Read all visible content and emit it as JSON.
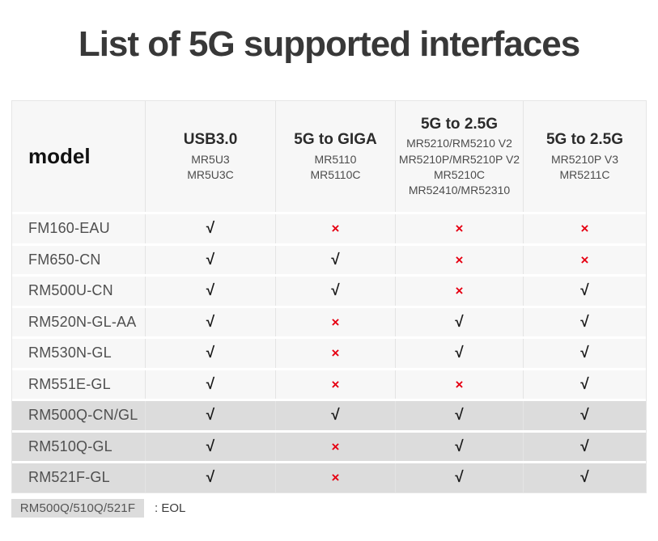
{
  "title": "List of 5G supported interfaces",
  "table": {
    "model_header": "model",
    "columns": [
      {
        "title": "USB3.0",
        "models": [
          "MR5U3",
          "MR5U3C"
        ]
      },
      {
        "title": "5G to GIGA",
        "models": [
          "MR5110",
          "MR5110C"
        ]
      },
      {
        "title": "5G to 2.5G",
        "models": [
          "MR5210/RM5210 V2",
          "MR5210P/MR5210P V2",
          "MR5210C",
          "MR52410/MR52310"
        ]
      },
      {
        "title": "5G to 2.5G",
        "models": [
          "MR5210P V3",
          "MR5211C"
        ]
      }
    ],
    "symbols": {
      "check": "√",
      "cross": "×"
    },
    "rows": [
      {
        "model": "FM160-EAU",
        "values": [
          "check",
          "cross",
          "cross",
          "cross"
        ],
        "eol": false
      },
      {
        "model": "FM650-CN",
        "values": [
          "check",
          "check",
          "cross",
          "cross"
        ],
        "eol": false
      },
      {
        "model": "RM500U-CN",
        "values": [
          "check",
          "check",
          "cross",
          "check"
        ],
        "eol": false
      },
      {
        "model": "RM520N-GL-AA",
        "values": [
          "check",
          "cross",
          "check",
          "check"
        ],
        "eol": false
      },
      {
        "model": "RM530N-GL",
        "values": [
          "check",
          "cross",
          "check",
          "check"
        ],
        "eol": false
      },
      {
        "model": "RM551E-GL",
        "values": [
          "check",
          "cross",
          "cross",
          "check"
        ],
        "eol": false
      },
      {
        "model": "RM500Q-CN/GL",
        "values": [
          "check",
          "check",
          "check",
          "check"
        ],
        "eol": true
      },
      {
        "model": "RM510Q-GL",
        "values": [
          "check",
          "cross",
          "check",
          "check"
        ],
        "eol": true
      },
      {
        "model": "RM521F-GL",
        "values": [
          "check",
          "cross",
          "check",
          "check"
        ],
        "eol": true
      }
    ]
  },
  "legend": {
    "swatch_label": "RM500Q/510Q/521F",
    "description": ": EOL"
  },
  "colors": {
    "check": "#1a1a1a",
    "cross": "#e60012",
    "row_bg": "#f7f7f7",
    "eol_row_bg": "#dcdcdc",
    "header_bg": "#f7f7f7",
    "border": "#e4e4e4",
    "title_text": "#383838"
  }
}
